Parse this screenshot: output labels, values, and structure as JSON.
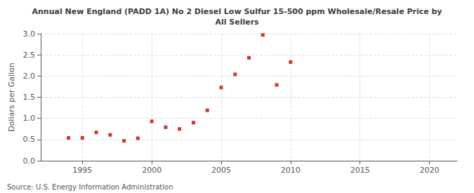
{
  "chart_data": {
    "type": "scatter",
    "title": "Annual New England (PADD 1A) No 2 Diesel Low Sulfur 15-500 ppm Wholesale/Resale Price by\nAll Sellers",
    "y_label": "Dollars per Gallon",
    "annotations": [
      "Source: U.S. Energy Information Administration"
    ],
    "x": [
      1994,
      1995,
      1996,
      1997,
      1998,
      1999,
      2000,
      2001,
      2002,
      2003,
      2004,
      2005,
      2006,
      2007,
      2008,
      2009,
      2010
    ],
    "values": [
      0.54,
      0.54,
      0.67,
      0.61,
      0.47,
      0.53,
      0.93,
      0.79,
      0.75,
      0.9,
      1.19,
      1.73,
      2.04,
      2.43,
      2.97,
      1.79,
      2.33
    ],
    "color": "#cc0000",
    "marker": "square",
    "xlim": [
      1992,
      2022
    ],
    "xticks": [
      1995,
      2000,
      2005,
      2010,
      2015,
      2020
    ],
    "ylim": [
      0.0,
      3.0
    ],
    "yticks": [
      {
        "value": 0,
        "label": "0.0"
      },
      0.5,
      {
        "value": 1,
        "label": "1.0"
      },
      1.5,
      {
        "value": 2,
        "label": "2.0"
      },
      2.5,
      {
        "value": 3,
        "label": "3.0"
      }
    ],
    "grid": true
  }
}
